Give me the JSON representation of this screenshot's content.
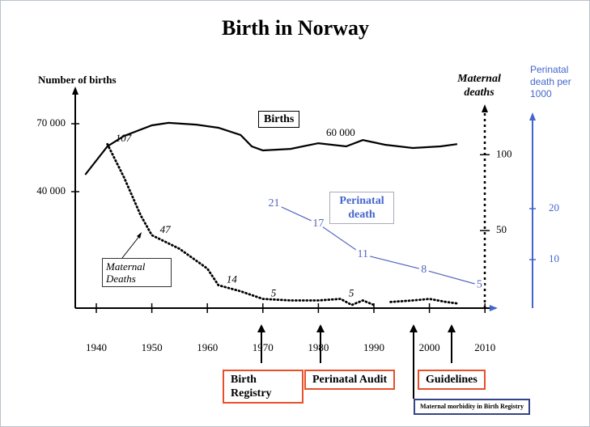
{
  "chart_data": {
    "type": "line",
    "title": "Birth in Norway",
    "y_label": "Number of births",
    "y2_label": "Maternal deaths",
    "y3_label": "Perinatal death per 1000",
    "xlim": [
      1936,
      2012
    ],
    "xticks": [
      1940,
      1950,
      1960,
      1970,
      1980,
      1990,
      2000,
      2010
    ],
    "ylim": [
      30000,
      75000
    ],
    "yticks": [
      {
        "value": 40000,
        "label": "40 000"
      },
      {
        "value": 70000,
        "label": "70 000"
      }
    ],
    "y2lim": [
      0,
      130
    ],
    "y2ticks": [
      50,
      100
    ],
    "y3lim": [
      0,
      40
    ],
    "y3ticks": [
      10,
      20
    ],
    "series": [
      {
        "name": "Births",
        "color": "#000000",
        "axis": "y",
        "x": [
          1938,
          1942,
          1945,
          1950,
          1953,
          1958,
          1962,
          1966,
          1968,
          1970,
          1975,
          1980,
          1985,
          1988,
          1992,
          1997,
          2002,
          2005
        ],
        "values": [
          47500,
          60000,
          64600,
          69300,
          70400,
          69600,
          68200,
          65000,
          60000,
          58200,
          58900,
          61400,
          60000,
          62800,
          60700,
          59300,
          60000,
          61000
        ]
      },
      {
        "name": "Maternal Deaths",
        "color": "#000000",
        "axis": "y2",
        "x": [
          1942,
          1945,
          1948,
          1950,
          1955,
          1960,
          1962,
          1966,
          1970,
          1975,
          1980,
          1984,
          1986,
          1988,
          1990,
          1991,
          1993,
          1997,
          2000,
          2003,
          2005
        ],
        "values": [
          107,
          85,
          60,
          47,
          38,
          25,
          14,
          10,
          5,
          4,
          4,
          5,
          1,
          4,
          1,
          null,
          3,
          4,
          5,
          3,
          2
        ],
        "value_labels": [
          "107",
          null,
          null,
          "47",
          null,
          null,
          "14",
          null,
          "5",
          null,
          null,
          "5",
          null,
          null,
          null,
          null,
          null,
          null,
          null,
          null,
          null
        ]
      },
      {
        "name": "Perinatal death",
        "color": "#5566bb",
        "axis": "y3",
        "x": [
          1972,
          1980,
          1988,
          1999,
          2009
        ],
        "values": [
          21,
          17,
          11,
          8,
          5
        ]
      }
    ],
    "annotations": [
      "60 000"
    ],
    "events": [
      "Birth Registry",
      "Perinatal Audit",
      "Guidelines",
      "Maternal morbidity in Birth Registry"
    ]
  }
}
